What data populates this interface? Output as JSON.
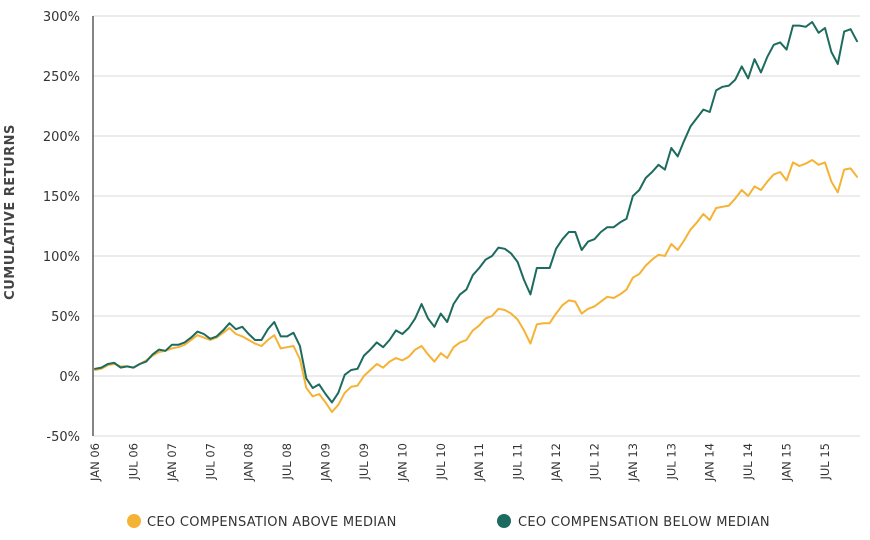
{
  "chart_data": {
    "type": "line",
    "title": "",
    "xlabel": "",
    "ylabel": "CUMULATIVE RETURNS",
    "ylim": [
      -50,
      300
    ],
    "yticks": [
      -50,
      0,
      50,
      100,
      150,
      200,
      250,
      300
    ],
    "ytick_labels": [
      "-50%",
      "0%",
      "50%",
      "100%",
      "150%",
      "200%",
      "250%",
      "300%"
    ],
    "x_tick_labels": [
      "JAN 06",
      "JUL 06",
      "JAN 07",
      "JUL 07",
      "JAN 08",
      "JUL 08",
      "JAN 09",
      "JUL 09",
      "JAN 10",
      "JUL 10",
      "JAN 11",
      "JUL 11",
      "JAN 12",
      "JUL 12",
      "JAN 13",
      "JUL 13",
      "JAN 14",
      "JUL 14",
      "JAN 15",
      "JUL 15"
    ],
    "grid": "horizontal",
    "legend_position": "bottom",
    "series": [
      {
        "name": "CEO COMPENSATION ABOVE MEDIAN",
        "color": "#F5B335",
        "values": [
          5,
          6,
          9,
          10,
          8,
          8,
          7,
          10,
          13,
          17,
          20,
          21,
          23,
          24,
          26,
          30,
          34,
          32,
          30,
          32,
          36,
          40,
          35,
          33,
          30,
          27,
          25,
          30,
          34,
          23,
          24,
          25,
          14,
          -10,
          -17,
          -15,
          -22,
          -30,
          -24,
          -14,
          -9,
          -8,
          0,
          5,
          10,
          7,
          12,
          15,
          13,
          16,
          22,
          25,
          18,
          12,
          19,
          15,
          24,
          28,
          30,
          38,
          42,
          48,
          50,
          56,
          55,
          52,
          47,
          38,
          27,
          43,
          44,
          44,
          52,
          59,
          63,
          62,
          52,
          56,
          58,
          62,
          66,
          65,
          68,
          72,
          82,
          85,
          92,
          97,
          101,
          100,
          110,
          105,
          113,
          122,
          128,
          135,
          130,
          140,
          141,
          142,
          148,
          155,
          150,
          158,
          155,
          162,
          168,
          170,
          163,
          178,
          175,
          177,
          180,
          176,
          178,
          162,
          153,
          172,
          173,
          166
        ]
      },
      {
        "name": "CEO COMPENSATION BELOW MEDIAN",
        "color": "#1D6B5E",
        "values": [
          6,
          7,
          10,
          11,
          7,
          8,
          7,
          10,
          12,
          18,
          22,
          21,
          26,
          26,
          28,
          32,
          37,
          35,
          31,
          33,
          38,
          44,
          39,
          41,
          35,
          30,
          30,
          39,
          45,
          33,
          33,
          36,
          25,
          -2,
          -10,
          -7,
          -15,
          -22,
          -14,
          1,
          5,
          6,
          17,
          22,
          28,
          24,
          30,
          38,
          35,
          40,
          48,
          60,
          48,
          41,
          52,
          45,
          60,
          68,
          72,
          84,
          90,
          97,
          100,
          107,
          106,
          102,
          95,
          80,
          68,
          90,
          90,
          90,
          106,
          114,
          120,
          120,
          105,
          112,
          114,
          120,
          124,
          124,
          128,
          131,
          150,
          155,
          165,
          170,
          176,
          172,
          190,
          183,
          196,
          208,
          215,
          222,
          220,
          238,
          241,
          242,
          247,
          258,
          248,
          264,
          253,
          266,
          276,
          278,
          272,
          292,
          292,
          291,
          295,
          286,
          290,
          270,
          260,
          287,
          289,
          279
        ]
      }
    ]
  }
}
